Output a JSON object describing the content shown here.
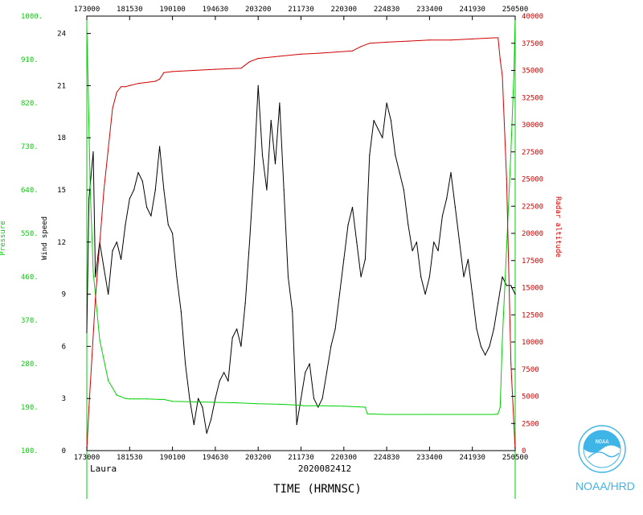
{
  "chart_data": {
    "type": "line",
    "xlabel": "TIME (HRMNSC)",
    "date_label": "2020082412",
    "storm_label": "Laura",
    "x_ticks": [
      "173000",
      "181530",
      "190100",
      "194630",
      "203200",
      "211730",
      "220300",
      "224830",
      "233400",
      "241930",
      "250500"
    ],
    "left_axis_speed": {
      "label": "Wind speed",
      "ticks": [
        "0",
        "3",
        "6",
        "9",
        "12",
        "15",
        "18",
        "21",
        "24"
      ],
      "ylim": [
        0,
        25
      ]
    },
    "left_axis_pressure": {
      "label": "Pressure",
      "ticks": [
        "100.",
        "190.",
        "280.",
        "370.",
        "460.",
        "550.",
        "640.",
        "730.",
        "820.",
        "910.",
        "1000."
      ],
      "ylim": [
        100,
        1000
      ]
    },
    "right_axis_altitude": {
      "label": "Radar altitude",
      "ticks": [
        "0",
        "2500",
        "5000",
        "7500",
        "10000",
        "12500",
        "15000",
        "17500",
        "20000",
        "22500",
        "25000",
        "27500",
        "30000",
        "32500",
        "35000",
        "37500",
        "40000"
      ],
      "ylim": [
        0,
        40000
      ]
    },
    "series": [
      {
        "name": "Wind speed",
        "axis": "speed",
        "color": "#000000",
        "x": [
          0,
          0.5,
          1.5,
          2,
          3,
          4,
          5,
          6,
          7,
          8,
          9,
          10,
          11,
          12,
          13,
          14,
          15,
          16,
          17,
          18,
          19,
          20,
          21,
          22,
          23,
          24,
          25,
          26,
          27,
          28,
          29,
          30,
          31,
          32,
          33,
          34,
          35,
          36,
          37,
          38,
          39,
          40,
          41,
          42,
          43,
          44,
          45,
          46,
          47,
          48,
          49,
          50,
          51,
          52,
          53,
          54,
          55,
          56,
          57,
          58,
          59,
          60,
          61,
          62,
          63,
          64,
          65,
          66,
          67,
          68,
          69,
          70,
          71,
          72,
          73,
          74,
          75,
          76,
          77,
          78,
          79,
          80,
          81,
          82,
          83,
          84,
          85,
          86,
          87,
          88,
          89,
          90,
          91,
          92,
          93,
          94,
          95,
          96,
          97,
          98,
          99,
          100
        ],
        "values": [
          6.8,
          14.5,
          17.2,
          10,
          12,
          10.5,
          9,
          11.5,
          12,
          11,
          13,
          14.5,
          15,
          16,
          15.5,
          14,
          13.5,
          15,
          17.5,
          15,
          13,
          12.5,
          10,
          8,
          5,
          3,
          1.5,
          3,
          2.5,
          1,
          1.8,
          3,
          4,
          4.5,
          4,
          6.5,
          7,
          6,
          8.5,
          12,
          16,
          21,
          17,
          15,
          19,
          16.5,
          20,
          15,
          10,
          8,
          1.5,
          3,
          4.5,
          5,
          3,
          2.5,
          3,
          4.5,
          6,
          7,
          9,
          11,
          13,
          14,
          12,
          10,
          11,
          17,
          19,
          18.5,
          18,
          20,
          19,
          17,
          16,
          15,
          13,
          11.5,
          12,
          10,
          9,
          10,
          12,
          11.5,
          13.5,
          14.5,
          16,
          14,
          12,
          10,
          11,
          9,
          7,
          6,
          5.5,
          6,
          7,
          8.5,
          10,
          9.5,
          9.5,
          9
        ]
      },
      {
        "name": "Pressure",
        "axis": "pressure",
        "color": "#00d000",
        "x": [
          0,
          0.3,
          0.8,
          1.5,
          3,
          5,
          7,
          9,
          10,
          11,
          12,
          14,
          17,
          18,
          20,
          25,
          30,
          35,
          40,
          45,
          50,
          50.5,
          55,
          60,
          65,
          65.5,
          70,
          75,
          80,
          85,
          90,
          95,
          96,
          96.5,
          97,
          98,
          99,
          99.7,
          100
        ],
        "values": [
          975,
          860,
          640,
          470,
          330,
          245,
          215,
          208,
          207,
          207,
          207,
          207,
          206,
          206,
          202,
          201,
          200,
          199,
          197,
          196,
          194,
          193,
          193,
          192,
          190,
          176,
          175,
          175,
          175,
          175,
          175,
          175,
          176,
          190,
          330,
          520,
          720,
          880,
          1000
        ]
      },
      {
        "name": "Radar altitude",
        "axis": "altitude",
        "color": "#d00000",
        "x": [
          0,
          0.5,
          2,
          4,
          6,
          7,
          8,
          9,
          10,
          12,
          16,
          17,
          18,
          20,
          25,
          30,
          36,
          38,
          40,
          45,
          50,
          55,
          62,
          64,
          66,
          70,
          75,
          80,
          85,
          90,
          95,
          96,
          96.5,
          97,
          98,
          99,
          100
        ],
        "values": [
          0,
          4000,
          14000,
          24000,
          31500,
          33000,
          33500,
          33500,
          33600,
          33800,
          34000,
          34200,
          34800,
          34900,
          35000,
          35100,
          35200,
          35800,
          36100,
          36300,
          36500,
          36600,
          36800,
          37200,
          37500,
          37600,
          37700,
          37800,
          37800,
          37900,
          38000,
          38000,
          36000,
          34500,
          25000,
          8000,
          0
        ]
      }
    ],
    "colors": {
      "speed": "#000000",
      "pressure": "#00d000",
      "altitude": "#d00000"
    },
    "grid": false,
    "legend": "none"
  },
  "logo": {
    "ring_text": "NOAA",
    "caption": "NOAA/HRD"
  }
}
